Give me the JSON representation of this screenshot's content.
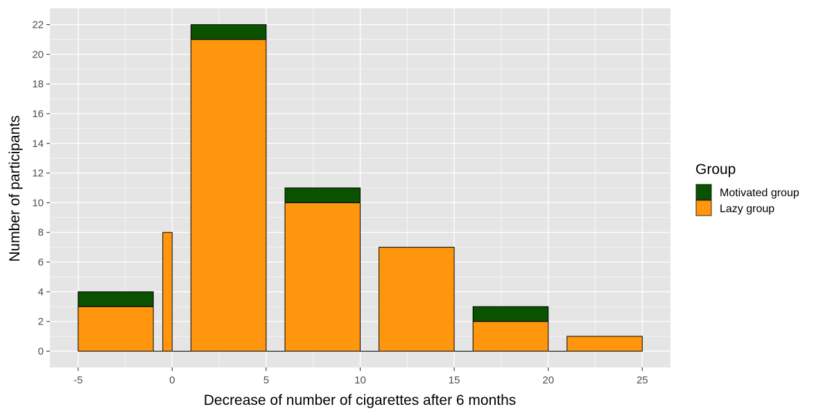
{
  "chart_data": {
    "type": "bar",
    "stacked": true,
    "xlabel": "Decrease of number of cigarettes after 6 months",
    "ylabel": "Number of participants",
    "xlim": [
      -6.5,
      26.5
    ],
    "ylim": [
      -1.1,
      23.1
    ],
    "x_ticks": [
      -5,
      0,
      5,
      10,
      15,
      20,
      25
    ],
    "y_ticks": [
      0,
      2,
      4,
      6,
      8,
      10,
      12,
      14,
      16,
      18,
      20,
      22
    ],
    "grid": true,
    "legend": {
      "title": "Group",
      "position": "right"
    },
    "bins": [
      {
        "x0": -5,
        "x1": -1
      },
      {
        "x0": -0.5,
        "x1": 0
      },
      {
        "x0": 1,
        "x1": 5
      },
      {
        "x0": 6,
        "x1": 10
      },
      {
        "x0": 11,
        "x1": 15
      },
      {
        "x0": 16,
        "x1": 20
      },
      {
        "x0": 21,
        "x1": 25
      }
    ],
    "series": [
      {
        "name": "Lazy group",
        "color": "#ff960d",
        "values": [
          3,
          8,
          21,
          10,
          7,
          2,
          1
        ]
      },
      {
        "name": "Motivated group",
        "color": "#0b5200",
        "values": [
          1,
          0,
          1,
          1,
          0,
          1,
          0
        ]
      }
    ],
    "legend_order": [
      "Motivated group",
      "Lazy group"
    ],
    "colors": {
      "panel": "#e5e5e5",
      "grid": "#ffffff",
      "bar_outline": "#000000"
    }
  }
}
